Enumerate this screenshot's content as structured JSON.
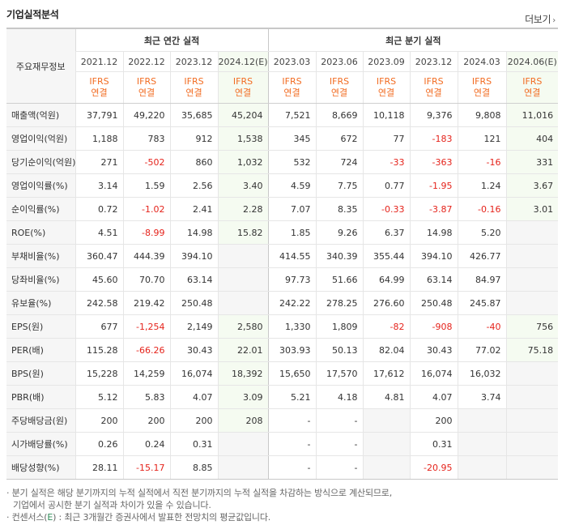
{
  "title": "기업실적분석",
  "more_label": "더보기",
  "row_header": "주요재무정보",
  "groups": {
    "annual": "최근 연간 실적",
    "quarter": "최근 분기 실적"
  },
  "dates": [
    "2021.12",
    "2022.12",
    "2023.12",
    "2024.12(E)",
    "2023.03",
    "2023.06",
    "2023.09",
    "2023.12",
    "2024.03",
    "2024.06(E)"
  ],
  "ifrs_top": "IFRS",
  "ifrs_bottom": "연결",
  "rows": [
    {
      "label": "매출액(억원)",
      "values": [
        "37,791",
        "49,220",
        "35,685",
        "45,204",
        "7,521",
        "8,669",
        "10,118",
        "9,376",
        "9,808",
        "11,016"
      ]
    },
    {
      "label": "영업이익(억원)",
      "values": [
        "1,188",
        "783",
        "912",
        "1,538",
        "345",
        "672",
        "77",
        "-183",
        "121",
        "404"
      ]
    },
    {
      "label": "당기순이익(억원)",
      "values": [
        "271",
        "-502",
        "860",
        "1,032",
        "532",
        "724",
        "-33",
        "-363",
        "-16",
        "331"
      ]
    },
    {
      "label": "영업이익률(%)",
      "values": [
        "3.14",
        "1.59",
        "2.56",
        "3.40",
        "4.59",
        "7.75",
        "0.77",
        "-1.95",
        "1.24",
        "3.67"
      ]
    },
    {
      "label": "순이익률(%)",
      "values": [
        "0.72",
        "-1.02",
        "2.41",
        "2.28",
        "7.07",
        "8.35",
        "-0.33",
        "-3.87",
        "-0.16",
        "3.01"
      ]
    },
    {
      "label": "ROE(%)",
      "values": [
        "4.51",
        "-8.99",
        "14.98",
        "15.82",
        "1.85",
        "9.26",
        "6.37",
        "14.98",
        "5.20",
        ""
      ]
    },
    {
      "label": "부채비율(%)",
      "values": [
        "360.47",
        "444.39",
        "394.10",
        "",
        "414.55",
        "340.39",
        "355.44",
        "394.10",
        "426.77",
        ""
      ]
    },
    {
      "label": "당좌비율(%)",
      "values": [
        "45.60",
        "70.70",
        "63.14",
        "",
        "97.73",
        "51.66",
        "64.99",
        "63.14",
        "84.97",
        ""
      ]
    },
    {
      "label": "유보율(%)",
      "values": [
        "242.58",
        "219.42",
        "250.48",
        "",
        "242.22",
        "278.25",
        "276.60",
        "250.48",
        "245.87",
        ""
      ]
    },
    {
      "label": "EPS(원)",
      "values": [
        "677",
        "-1,254",
        "2,149",
        "2,580",
        "1,330",
        "1,809",
        "-82",
        "-908",
        "-40",
        "756"
      ]
    },
    {
      "label": "PER(배)",
      "values": [
        "115.28",
        "-66.26",
        "30.43",
        "22.01",
        "303.93",
        "50.13",
        "82.04",
        "30.43",
        "77.02",
        "75.18"
      ]
    },
    {
      "label": "BPS(원)",
      "values": [
        "15,228",
        "14,259",
        "16,074",
        "18,392",
        "15,650",
        "17,570",
        "17,612",
        "16,074",
        "16,032",
        ""
      ]
    },
    {
      "label": "PBR(배)",
      "values": [
        "5.12",
        "5.83",
        "4.07",
        "3.09",
        "5.21",
        "4.18",
        "4.81",
        "4.07",
        "3.74",
        ""
      ]
    },
    {
      "label": "주당배당금(원)",
      "values": [
        "200",
        "200",
        "200",
        "208",
        "-",
        "-",
        "",
        "200",
        "",
        ""
      ]
    },
    {
      "label": "시가배당률(%)",
      "values": [
        "0.26",
        "0.24",
        "0.31",
        "",
        "-",
        "-",
        "",
        "0.31",
        "",
        ""
      ]
    },
    {
      "label": "배당성향(%)",
      "values": [
        "28.11",
        "-15.17",
        "8.85",
        "",
        "-",
        "-",
        "",
        "-20.95",
        "",
        ""
      ]
    }
  ],
  "notes": {
    "line1": "· 분기 실적은 해당 분기까지의 누적 실적에서 직전 분기까지의 누적 실적을 차감하는 방식으로 계산되므로,",
    "line2": "기업에서 공시한 분기 실적과 차이가 있을 수 있습니다.",
    "line3_prefix": "· 컨센서스(",
    "line3_e": "E",
    "line3_suffix": ") : 최근 3개월간 증권사에서 발표한 전망치의 평균값입니다."
  }
}
